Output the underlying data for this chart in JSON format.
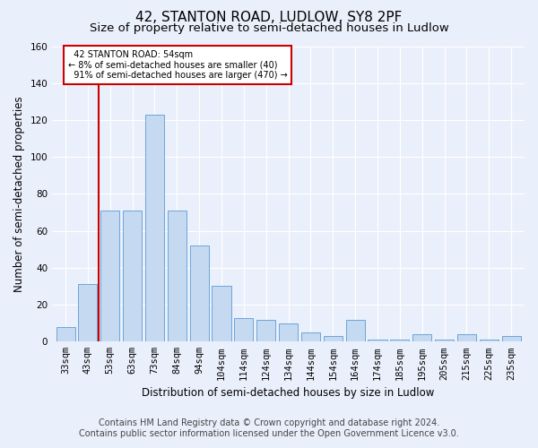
{
  "title": "42, STANTON ROAD, LUDLOW, SY8 2PF",
  "subtitle": "Size of property relative to semi-detached houses in Ludlow",
  "xlabel": "Distribution of semi-detached houses by size in Ludlow",
  "ylabel": "Number of semi-detached properties",
  "bar_labels": [
    "33sqm",
    "43sqm",
    "53sqm",
    "63sqm",
    "73sqm",
    "84sqm",
    "94sqm",
    "104sqm",
    "114sqm",
    "124sqm",
    "134sqm",
    "144sqm",
    "154sqm",
    "164sqm",
    "174sqm",
    "185sqm",
    "195sqm",
    "205sqm",
    "215sqm",
    "225sqm",
    "235sqm"
  ],
  "bar_values": [
    8,
    31,
    71,
    71,
    123,
    71,
    52,
    30,
    13,
    12,
    10,
    5,
    3,
    12,
    1,
    1,
    4,
    1,
    4,
    1,
    3
  ],
  "bar_color": "#c5d9f1",
  "bar_edge_color": "#5b9bd5",
  "property_sqm": 54,
  "property_label": "42 STANTON ROAD: 54sqm",
  "smaller_pct": "8%",
  "smaller_count": 40,
  "larger_pct": "91%",
  "larger_count": 470,
  "annotation_box_color": "#cc0000",
  "ylim": [
    0,
    160
  ],
  "yticks": [
    0,
    20,
    40,
    60,
    80,
    100,
    120,
    140,
    160
  ],
  "footer_line1": "Contains HM Land Registry data © Crown copyright and database right 2024.",
  "footer_line2": "Contains public sector information licensed under the Open Government Licence v3.0.",
  "bg_color": "#eaf0fb",
  "plot_bg_color": "#eaf0fb",
  "grid_color": "#ffffff",
  "title_fontsize": 11,
  "subtitle_fontsize": 9.5,
  "axis_label_fontsize": 8.5,
  "tick_fontsize": 7.5,
  "footer_fontsize": 7
}
